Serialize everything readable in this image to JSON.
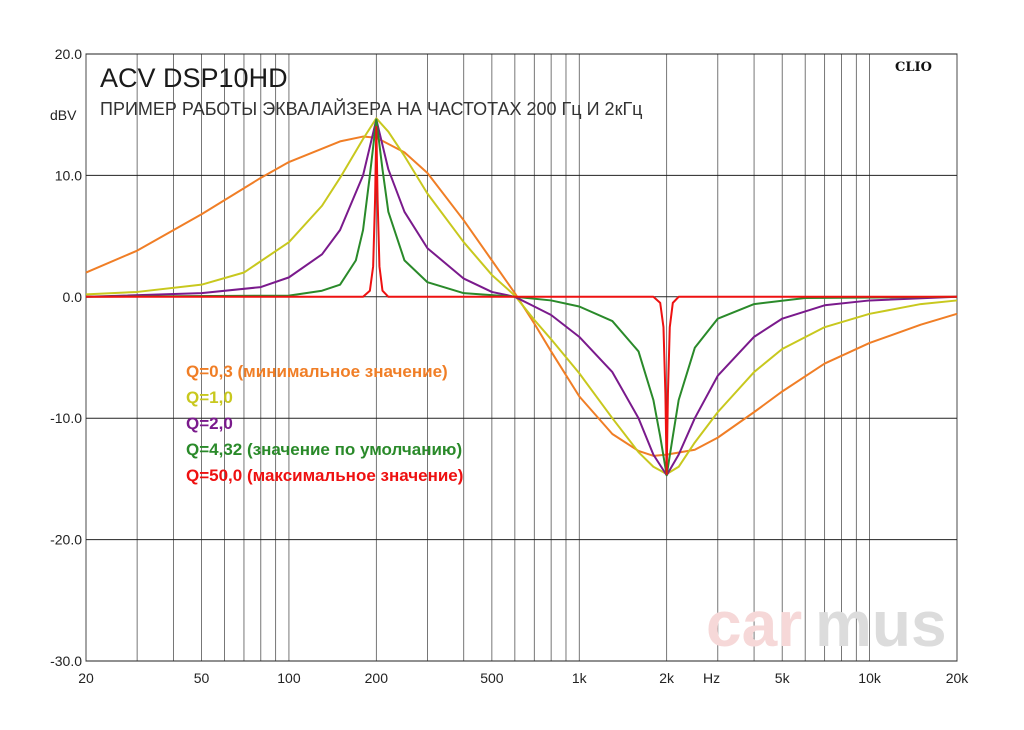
{
  "chart_data": {
    "type": "line",
    "title": "ACV DSP10HD",
    "subtitle": "ПРИМЕР РАБОТЫ ЭКВАЛАЙЗЕРА НА ЧАСТОТАХ 200 Гц И 2кГц",
    "ylabel": "dBV",
    "xlabel": "Hz",
    "brand_label": "CLIO",
    "watermark": {
      "part1": "car",
      "part2": "mus"
    },
    "x_scale": "log",
    "xlim": [
      20,
      20000
    ],
    "ylim": [
      -30,
      20
    ],
    "grid": true,
    "y_ticks": [
      {
        "v": 20,
        "label": "20.0"
      },
      {
        "v": 10,
        "label": "10.0"
      },
      {
        "v": 0,
        "label": "0.0"
      },
      {
        "v": -10,
        "label": "-10.0"
      },
      {
        "v": -20,
        "label": "-20.0"
      },
      {
        "v": -30,
        "label": "-30.0"
      }
    ],
    "x_ticks": [
      {
        "v": 20,
        "label": "20"
      },
      {
        "v": 50,
        "label": "50"
      },
      {
        "v": 100,
        "label": "100"
      },
      {
        "v": 200,
        "label": "200"
      },
      {
        "v": 500,
        "label": "500"
      },
      {
        "v": 1000,
        "label": "1k"
      },
      {
        "v": 2000,
        "label": "2k"
      },
      {
        "v": 5000,
        "label": "5k"
      },
      {
        "v": 10000,
        "label": "10k"
      },
      {
        "v": 20000,
        "label": "20k"
      }
    ],
    "legend_position": "left-middle",
    "series": [
      {
        "name": "Q=0,3 (минимальное значение)",
        "color": "#f07e26",
        "q": 0.3,
        "points": [
          [
            20,
            2.0
          ],
          [
            30,
            3.8
          ],
          [
            50,
            6.8
          ],
          [
            80,
            9.8
          ],
          [
            100,
            11.1
          ],
          [
            150,
            12.8
          ],
          [
            180,
            13.2
          ],
          [
            200,
            13.1
          ],
          [
            250,
            11.9
          ],
          [
            300,
            10.2
          ],
          [
            400,
            6.3
          ],
          [
            500,
            3.0
          ],
          [
            600,
            0.3
          ],
          [
            700,
            -2.2
          ],
          [
            800,
            -4.5
          ],
          [
            1000,
            -8.2
          ],
          [
            1300,
            -11.3
          ],
          [
            1600,
            -12.7
          ],
          [
            1800,
            -13.1
          ],
          [
            2000,
            -13.0
          ],
          [
            2500,
            -12.6
          ],
          [
            3000,
            -11.6
          ],
          [
            4000,
            -9.5
          ],
          [
            5000,
            -7.8
          ],
          [
            7000,
            -5.5
          ],
          [
            10000,
            -3.8
          ],
          [
            15000,
            -2.3
          ],
          [
            20000,
            -1.4
          ]
        ]
      },
      {
        "name": "Q=1,0",
        "color": "#c8c81e",
        "q": 1.0,
        "points": [
          [
            20,
            0.2
          ],
          [
            30,
            0.4
          ],
          [
            50,
            1.0
          ],
          [
            70,
            2.0
          ],
          [
            100,
            4.5
          ],
          [
            130,
            7.5
          ],
          [
            150,
            9.8
          ],
          [
            180,
            13.0
          ],
          [
            200,
            14.7
          ],
          [
            220,
            13.6
          ],
          [
            250,
            11.6
          ],
          [
            300,
            8.5
          ],
          [
            400,
            4.5
          ],
          [
            500,
            1.8
          ],
          [
            600,
            0.1
          ],
          [
            700,
            -1.9
          ],
          [
            800,
            -3.5
          ],
          [
            1000,
            -6.3
          ],
          [
            1300,
            -10.0
          ],
          [
            1600,
            -12.8
          ],
          [
            1800,
            -14.0
          ],
          [
            2000,
            -14.6
          ],
          [
            2200,
            -14.0
          ],
          [
            2500,
            -12.0
          ],
          [
            3000,
            -9.5
          ],
          [
            4000,
            -6.2
          ],
          [
            5000,
            -4.3
          ],
          [
            7000,
            -2.5
          ],
          [
            10000,
            -1.4
          ],
          [
            15000,
            -0.6
          ],
          [
            20000,
            -0.3
          ]
        ]
      },
      {
        "name": "Q=2,0",
        "color": "#7a1a8c",
        "q": 2.0,
        "points": [
          [
            20,
            0
          ],
          [
            50,
            0.3
          ],
          [
            80,
            0.8
          ],
          [
            100,
            1.6
          ],
          [
            130,
            3.5
          ],
          [
            150,
            5.5
          ],
          [
            180,
            10.0
          ],
          [
            200,
            14.6
          ],
          [
            220,
            10.5
          ],
          [
            250,
            7.0
          ],
          [
            300,
            4.0
          ],
          [
            400,
            1.5
          ],
          [
            500,
            0.4
          ],
          [
            600,
            0
          ],
          [
            700,
            -0.8
          ],
          [
            800,
            -1.5
          ],
          [
            1000,
            -3.3
          ],
          [
            1300,
            -6.2
          ],
          [
            1600,
            -10.0
          ],
          [
            1800,
            -13.0
          ],
          [
            2000,
            -14.7
          ],
          [
            2200,
            -13.0
          ],
          [
            2500,
            -10.0
          ],
          [
            3000,
            -6.5
          ],
          [
            4000,
            -3.3
          ],
          [
            5000,
            -1.8
          ],
          [
            7000,
            -0.7
          ],
          [
            10000,
            -0.3
          ],
          [
            20000,
            0
          ]
        ]
      },
      {
        "name": "Q=4,32 (значение по умолчанию)",
        "color": "#2a8a2a",
        "q": 4.32,
        "points": [
          [
            20,
            0
          ],
          [
            100,
            0.1
          ],
          [
            130,
            0.5
          ],
          [
            150,
            1.0
          ],
          [
            170,
            3.0
          ],
          [
            180,
            5.5
          ],
          [
            190,
            10.0
          ],
          [
            200,
            14.6
          ],
          [
            210,
            10.5
          ],
          [
            220,
            7.0
          ],
          [
            250,
            3.0
          ],
          [
            300,
            1.2
          ],
          [
            400,
            0.3
          ],
          [
            600,
            0
          ],
          [
            800,
            -0.3
          ],
          [
            1000,
            -0.8
          ],
          [
            1300,
            -2.0
          ],
          [
            1600,
            -4.5
          ],
          [
            1800,
            -8.5
          ],
          [
            1900,
            -11.5
          ],
          [
            2000,
            -14.7
          ],
          [
            2100,
            -11.5
          ],
          [
            2200,
            -8.5
          ],
          [
            2500,
            -4.2
          ],
          [
            3000,
            -1.8
          ],
          [
            4000,
            -0.6
          ],
          [
            6000,
            -0.1
          ],
          [
            20000,
            0
          ]
        ]
      },
      {
        "name": "Q=50,0 (максимальное значение)",
        "color": "#ee1111",
        "q": 50.0,
        "points": [
          [
            20,
            0
          ],
          [
            180,
            0
          ],
          [
            190,
            0.5
          ],
          [
            195,
            2.5
          ],
          [
            198,
            8.0
          ],
          [
            200,
            14.0
          ],
          [
            202,
            8.0
          ],
          [
            205,
            2.5
          ],
          [
            210,
            0.5
          ],
          [
            220,
            0
          ],
          [
            1800,
            0
          ],
          [
            1900,
            -0.5
          ],
          [
            1950,
            -2.5
          ],
          [
            1980,
            -8.0
          ],
          [
            2000,
            -14.6
          ],
          [
            2020,
            -8.0
          ],
          [
            2050,
            -2.5
          ],
          [
            2100,
            -0.5
          ],
          [
            2200,
            0
          ],
          [
            20000,
            0
          ]
        ]
      }
    ]
  }
}
